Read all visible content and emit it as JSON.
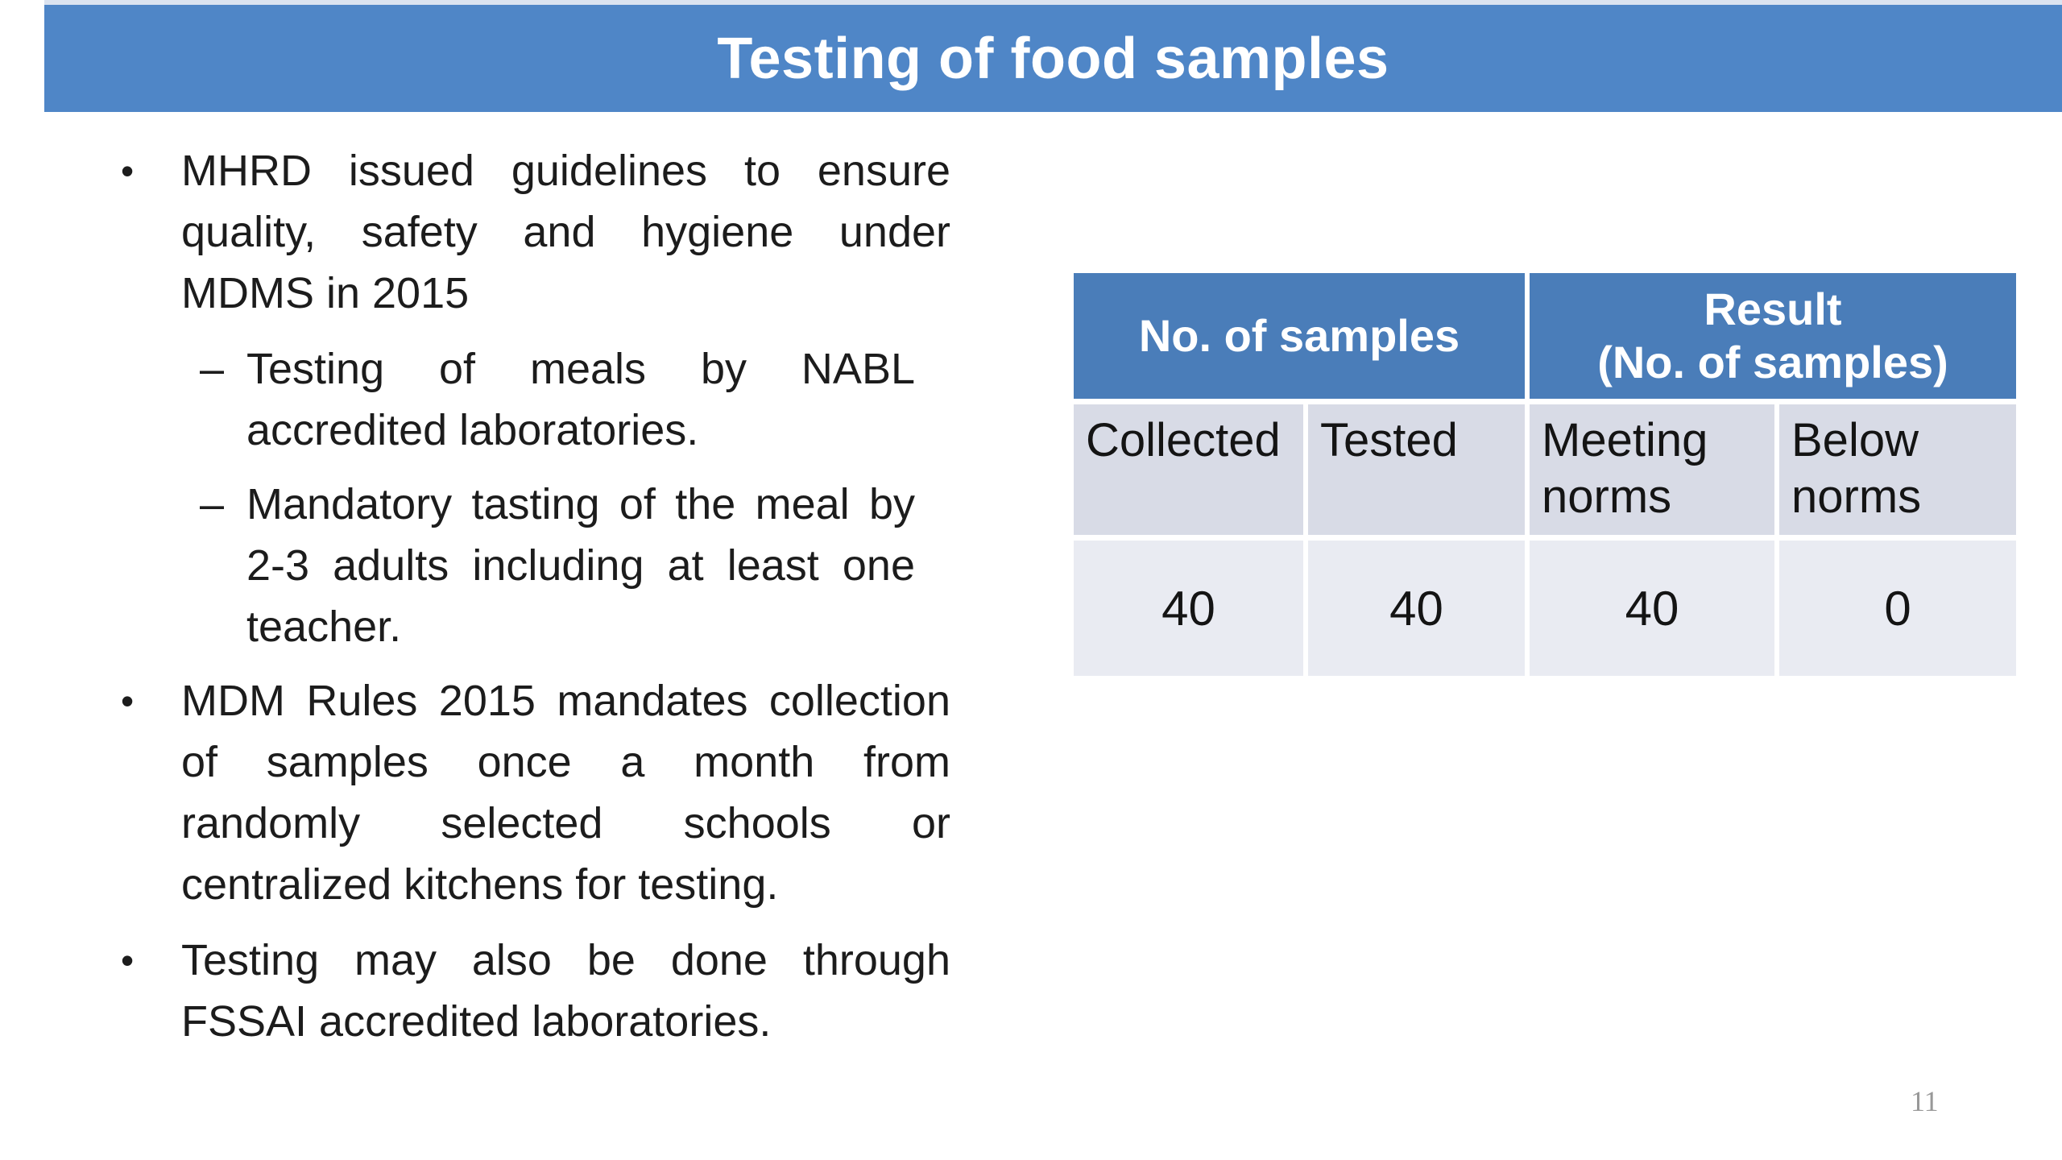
{
  "slide": {
    "title": "Testing of food samples",
    "page_number": "11",
    "colors": {
      "title_bar": "#4f86c7",
      "table_header": "#4a7db9",
      "table_label_row_bg": "#d8dbe6",
      "table_data_row_bg": "#e9ebf2",
      "title_text": "#ffffff",
      "body_text": "#1c1c1c",
      "page_number_text": "#989898"
    },
    "bullets": [
      {
        "level": 1,
        "marker": "•",
        "text": "MHRD issued guidelines to ensure quality, safety and hygiene under MDMS in 2015"
      },
      {
        "level": 2,
        "marker": "–",
        "text": "Testing of meals by NABL accredited laboratories."
      },
      {
        "level": 2,
        "marker": "–",
        "text": "Mandatory tasting of the meal by 2-3 adults including at least one teacher."
      },
      {
        "level": 1,
        "marker": "•",
        "text": "MDM Rules 2015 mandates collection of samples once a month from randomly selected schools or centralized kitchens for testing."
      },
      {
        "level": 1,
        "marker": "•",
        "text": "Testing may also be done through FSSAI accredited laboratories."
      }
    ],
    "table": {
      "group_headers": {
        "samples": "No. of samples",
        "result_line1": "Result",
        "result_line2": "(No. of samples)"
      },
      "column_headers": [
        "Collected",
        "Tested",
        "Meeting norms",
        "Below norms"
      ],
      "values": [
        "40",
        "40",
        "40",
        "0"
      ]
    }
  }
}
